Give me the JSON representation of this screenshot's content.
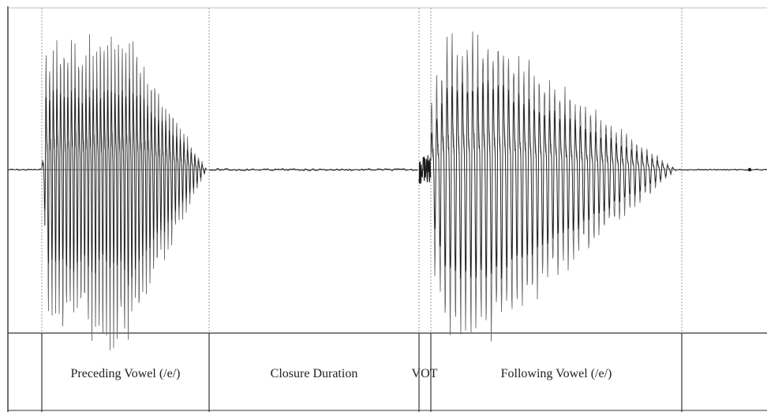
{
  "segments": [
    {
      "id": "preceding-vowel",
      "label": "Preceding Vowel (/e/)"
    },
    {
      "id": "closure-duration",
      "label": "Closure Duration"
    },
    {
      "id": "vot",
      "label": "VOT"
    },
    {
      "id": "following-vowel",
      "label": "Following Vowel (/e/)"
    }
  ],
  "colors": {
    "waveform": "#1a1a1a",
    "waveform_light": "#6a6a6a",
    "boundary_dotted": "#9a9a9a",
    "axis": "#555555",
    "frame": "#333333",
    "background": "#ffffff"
  }
}
